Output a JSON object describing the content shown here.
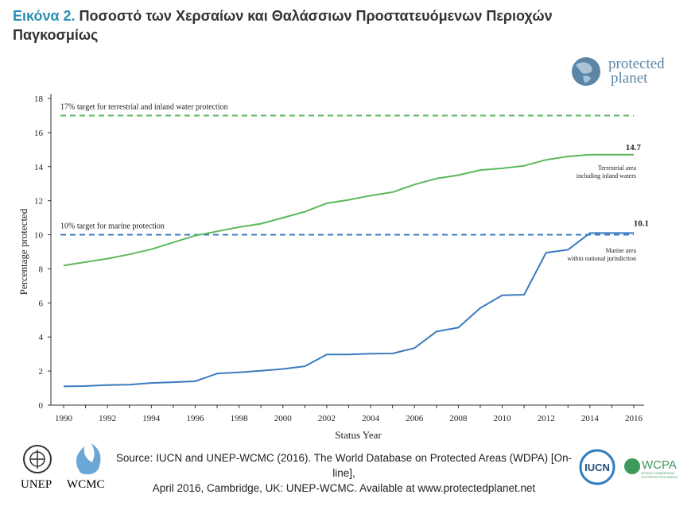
{
  "figure": {
    "label": "Εικόνα 2.",
    "title_line1": "Ποσοστό των Χερσαίων και Θαλάσσιων Προστατευόμενων Περιοχών",
    "title_line2": "Παγκοσμίως"
  },
  "logos": {
    "protected_planet_line1": "protected",
    "protected_planet_line2": "planet",
    "unep": "UNEP",
    "wcmc": "WCMC",
    "iucn": "IUCN",
    "wcpa": "WCPA",
    "wcpa_sub1": "WORLD COMMISSION",
    "wcpa_sub2": "ON PROTECTED AREAS"
  },
  "source": {
    "line1": "Source: IUCN and UNEP-WCMC (2016). The World Database on Protected Areas (WDPA) [On-line],",
    "line2": "April 2016, Cambridge, UK: UNEP-WCMC. Available at www.protectedplanet.net"
  },
  "colors": {
    "terrestrial": "#5cb85c",
    "marine": "#3b7bbf",
    "axis": "#333333"
  },
  "chart_data": {
    "type": "line",
    "xlabel": "Status Year",
    "ylabel": "Percentage protected",
    "xlim": [
      1990,
      2016
    ],
    "ylim": [
      0,
      18
    ],
    "x_ticks": [
      1990,
      1992,
      1994,
      1996,
      1998,
      2000,
      2002,
      2004,
      2006,
      2008,
      2010,
      2012,
      2014,
      2016
    ],
    "y_ticks": [
      0,
      2,
      4,
      6,
      8,
      10,
      12,
      14,
      16,
      18
    ],
    "grid": false,
    "x": [
      1990,
      1991,
      1992,
      1993,
      1994,
      1995,
      1996,
      1997,
      1998,
      1999,
      2000,
      2001,
      2002,
      2003,
      2004,
      2005,
      2006,
      2007,
      2008,
      2009,
      2010,
      2011,
      2012,
      2013,
      2014,
      2015,
      2016
    ],
    "series": [
      {
        "name": "Terrestrial area including inland waters",
        "label_line1": "Terrestrial area",
        "label_line2": "including inland waters",
        "end_label": "14.7",
        "color": "#5cb85c",
        "values": [
          8.2,
          8.4,
          8.6,
          8.85,
          9.15,
          9.55,
          9.95,
          10.2,
          10.45,
          10.65,
          11.0,
          11.35,
          11.85,
          12.05,
          12.3,
          12.5,
          12.95,
          13.3,
          13.5,
          13.8,
          13.9,
          14.05,
          14.4,
          14.6,
          14.7,
          14.7,
          14.7
        ]
      },
      {
        "name": "Marine area within national jurisdiction",
        "label_line1": "Marine area",
        "label_line2": "within national jurisdiction",
        "end_label": "10.1",
        "color": "#3b7bbf",
        "values": [
          1.1,
          1.12,
          1.18,
          1.2,
          1.3,
          1.35,
          1.4,
          1.85,
          1.92,
          2.02,
          2.12,
          2.28,
          2.97,
          2.97,
          3.02,
          3.03,
          3.35,
          4.32,
          4.55,
          5.7,
          6.45,
          6.48,
          8.95,
          9.12,
          10.1,
          10.1,
          10.1
        ]
      }
    ],
    "reference_lines": [
      {
        "label": "17% target for terrestrial and inland water protection",
        "y": 17,
        "color": "#5cb85c",
        "style": "dashed"
      },
      {
        "label": "10% target for marine protection",
        "y": 10,
        "color": "#3b7bbf",
        "style": "dashed"
      }
    ]
  }
}
